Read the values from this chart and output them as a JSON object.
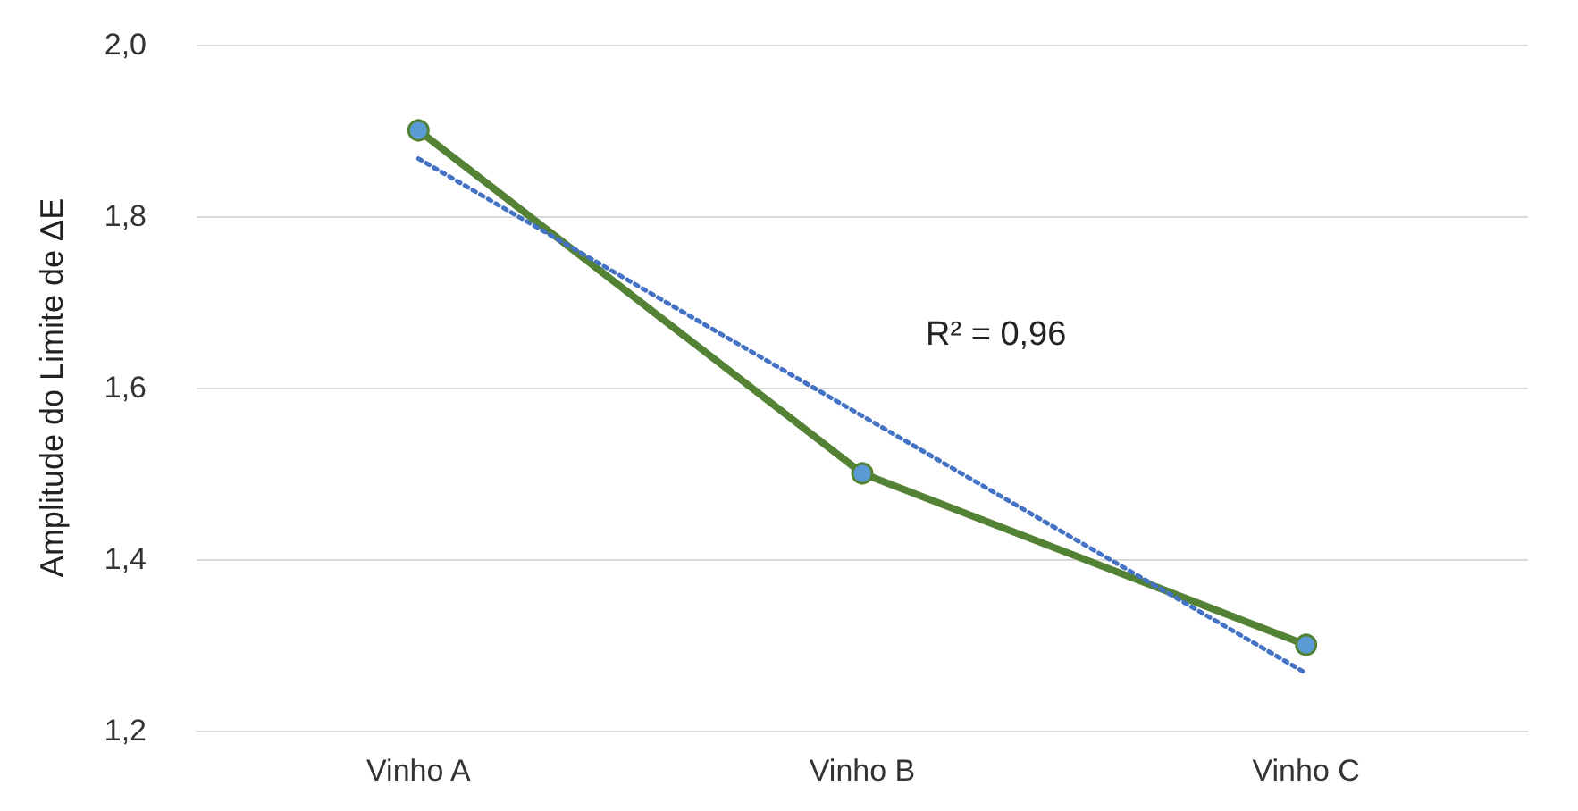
{
  "chart_data": {
    "type": "line",
    "ylabel": "Amplitude do Limite de ΔE",
    "categories": [
      "Vinho A",
      "Vinho B",
      "Vinho C"
    ],
    "series": [
      {
        "color": "#548235",
        "values": [
          1.9,
          1.5,
          1.3
        ],
        "marker": "circle",
        "line_style": "solid"
      },
      {
        "color": "#4472c4",
        "x": [
          "Vinho A",
          "Vinho B",
          "Vinho C"
        ],
        "values": [
          1.867,
          1.567,
          1.267
        ],
        "marker": "none",
        "line_style": "dotted"
      }
    ],
    "ylim": [
      1.2,
      2.0
    ],
    "yticks": [
      {
        "value": 1.2,
        "label": "1,2"
      },
      {
        "value": 1.4,
        "label": "1,4"
      },
      {
        "value": 1.6,
        "label": "1,6"
      },
      {
        "value": 1.8,
        "label": "1,8"
      },
      {
        "value": 2.0,
        "label": "2,0"
      }
    ],
    "grid": "y",
    "annotations": [
      "R² = 0,96"
    ]
  }
}
